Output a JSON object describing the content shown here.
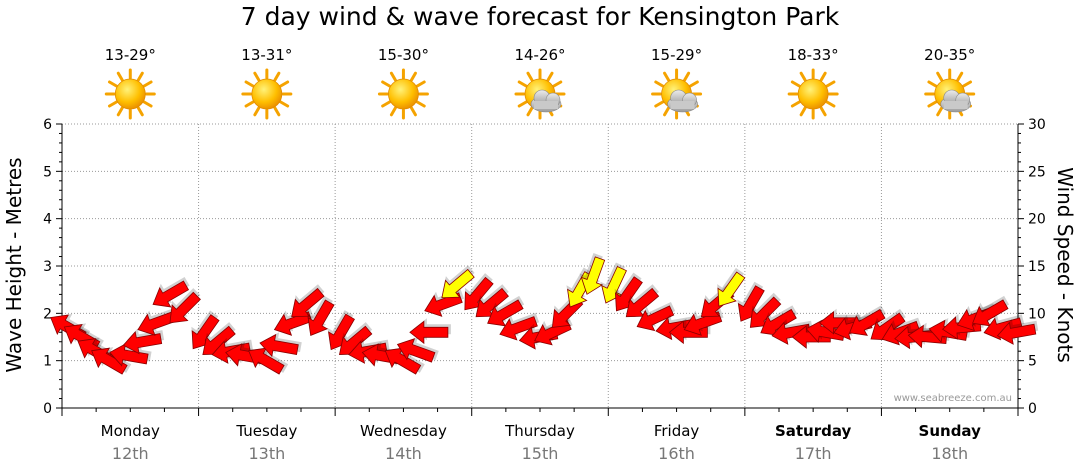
{
  "title": "7 day wind & wave forecast for Kensington Park",
  "credit": "www.seabreeze.com.au",
  "colors": {
    "arrow_strong": "#ff0000",
    "arrow_moderate": "#ffff00",
    "arrow_outline": "#8a0000",
    "sun": "#f5a300",
    "cloud": "#b8b8b8",
    "grid": "#9a9a9a"
  },
  "chart_data": {
    "type": "line",
    "title": "7 day wind & wave forecast for Kensington Park",
    "ylabel": "Wave Height - Metres",
    "y2label": "Wind Speed - Knots",
    "ylim": [
      0,
      6
    ],
    "y2lim": [
      0,
      30
    ],
    "y_ticks": [
      "0",
      "1",
      "2",
      "3",
      "4",
      "5",
      "6"
    ],
    "y2_ticks": [
      "0",
      "5",
      "10",
      "15",
      "20",
      "25",
      "30"
    ],
    "grid": true,
    "days": [
      {
        "name": "Monday",
        "date": "12th",
        "temp": "13-29°",
        "icon": "sun-icon",
        "weekend": false
      },
      {
        "name": "Tuesday",
        "date": "13th",
        "temp": "13-31°",
        "icon": "sun-icon",
        "weekend": false
      },
      {
        "name": "Wednesday",
        "date": "14th",
        "temp": "15-30°",
        "icon": "sun-icon",
        "weekend": false
      },
      {
        "name": "Thursday",
        "date": "15th",
        "temp": "14-26°",
        "icon": "partly-cloudy-icon",
        "weekend": false
      },
      {
        "name": "Friday",
        "date": "16th",
        "temp": "15-29°",
        "icon": "partly-cloudy-icon",
        "weekend": false
      },
      {
        "name": "Saturday",
        "date": "17th",
        "temp": "18-33°",
        "icon": "sun-icon",
        "weekend": true
      },
      {
        "name": "Sunday",
        "date": "18th",
        "temp": "20-35°",
        "icon": "partly-cloudy-icon",
        "weekend": true
      }
    ],
    "series": [
      {
        "type": "wind-arrows",
        "axis": "y2",
        "x_days": [
          0.0,
          0.1,
          0.2,
          0.3,
          0.45,
          0.55,
          0.65,
          0.75,
          0.85,
          1.0,
          1.1,
          1.2,
          1.3,
          1.45,
          1.55,
          1.65,
          1.75,
          1.85,
          2.0,
          2.1,
          2.2,
          2.3,
          2.45,
          2.55,
          2.65,
          2.75,
          2.85,
          3.0,
          3.1,
          3.2,
          3.3,
          3.45,
          3.55,
          3.65,
          3.75,
          3.85,
          4.0,
          4.1,
          4.2,
          4.3,
          4.45,
          4.55,
          4.65,
          4.75,
          4.85,
          5.0,
          5.1,
          5.2,
          5.3,
          5.45,
          5.55,
          5.65,
          5.75,
          5.85,
          6.0,
          6.1,
          6.2,
          6.3,
          6.45,
          6.55,
          6.65,
          6.75,
          6.85,
          6.95
        ],
        "values": [
          8.5,
          7.5,
          6,
          5,
          5.5,
          7,
          9,
          12,
          10.5,
          8,
          7,
          6,
          5.5,
          5,
          6.5,
          9,
          11,
          9.5,
          8,
          7,
          6,
          5.5,
          5,
          6,
          8,
          11,
          13,
          12,
          11,
          10,
          8.5,
          7.5,
          8,
          10,
          12.5,
          14,
          13,
          12,
          11,
          9.5,
          8.5,
          8,
          9,
          11,
          12.5,
          11,
          10,
          9,
          8,
          7.5,
          8,
          9,
          8.5,
          9,
          8.5,
          8,
          7.5,
          7.5,
          8,
          8.5,
          9.5,
          10,
          8.5,
          8
        ],
        "directions_deg": [
          300,
          300,
          300,
          300,
          280,
          260,
          250,
          240,
          225,
          215,
          230,
          260,
          280,
          300,
          280,
          250,
          230,
          210,
          210,
          230,
          260,
          280,
          300,
          290,
          270,
          250,
          230,
          220,
          230,
          240,
          250,
          260,
          245,
          225,
          210,
          200,
          205,
          215,
          230,
          245,
          260,
          270,
          250,
          230,
          215,
          210,
          225,
          240,
          260,
          270,
          280,
          270,
          255,
          240,
          235,
          250,
          265,
          275,
          280,
          265,
          250,
          240,
          255,
          260
        ]
      }
    ]
  }
}
